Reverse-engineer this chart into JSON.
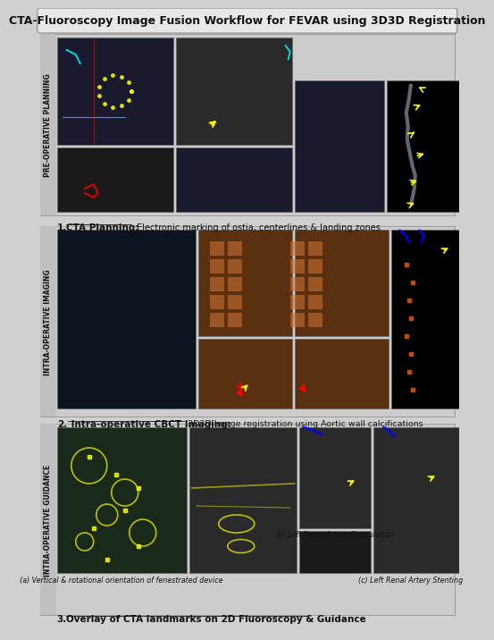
{
  "title": "CTA-Fluoroscopy Image Fusion Workflow for FEVAR using 3D3D Registration",
  "title_fontsize": 9,
  "background_color": "#d0d0d0",
  "figure_bg": "#d0d0d0",
  "sections": [
    {
      "label": "PRE-OPERATIVE PLANNING",
      "caption_number": "1.",
      "caption_bold": "CTA Planning:",
      "caption_text": " Electronic marking of ostia, centerlines & landing zones"
    },
    {
      "label": "INTRA-OPERATIVE IMAGING",
      "caption_number": "2.",
      "caption_bold": " Intra-operative CBCT Imaging:",
      "caption_text": " 3D3D Image registration using Aortic wall calcifications"
    },
    {
      "label": "INTRA-OPERATIVE GUIDANCE",
      "caption_number": "3.",
      "caption_bold": "Overlay of CTA landmarks on 2D Fluoroscopy & Guidance",
      "caption_text": "",
      "sub_captions": [
        "(a) Vertical & rotational orientation of fenestrated device",
        "(b) Left Renal Artery Cannulation",
        "(c) Left Renal Artery Stenting"
      ]
    }
  ],
  "side_label_bg": "#c8c8c8",
  "border_color": "#888888",
  "white": "#ffffff",
  "black": "#000000"
}
